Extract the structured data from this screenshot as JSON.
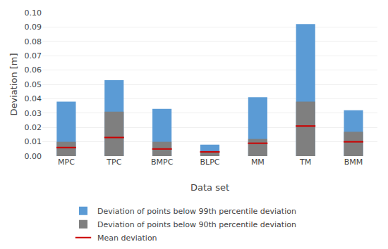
{
  "chart_data": {
    "type": "bar",
    "categories": [
      "MPC",
      "TPC",
      "BMPC",
      "BLPC",
      "MM",
      "TM",
      "BMM"
    ],
    "series": [
      {
        "name": "Deviation of points below 99th percentile deviation",
        "color": "#5b9bd5",
        "values": [
          0.038,
          0.053,
          0.033,
          0.008,
          0.041,
          0.092,
          0.032
        ]
      },
      {
        "name": "Deviation of points below 90th percentile deviation",
        "color": "#7f7f7f",
        "values": [
          0.01,
          0.031,
          0.01,
          0.003,
          0.012,
          0.038,
          0.017
        ]
      },
      {
        "name": "Mean deviation",
        "color": "#cc0000",
        "type": "scatter",
        "marker": "line-ew",
        "values": [
          0.006,
          0.013,
          0.005,
          0.003,
          0.009,
          0.021,
          0.01
        ]
      }
    ],
    "xlabel": "Data set",
    "ylabel": "Deviation [m]",
    "ylim": [
      0,
      0.1
    ],
    "yticks": [
      {
        "value": 0,
        "label": "0.00"
      },
      0.01,
      0.02,
      0.03,
      0.04,
      0.05,
      0.06,
      0.07,
      0.08,
      0.09,
      {
        "value": 0.1,
        "label": "0.10"
      }
    ],
    "grid": true,
    "legend": "bottom"
  }
}
